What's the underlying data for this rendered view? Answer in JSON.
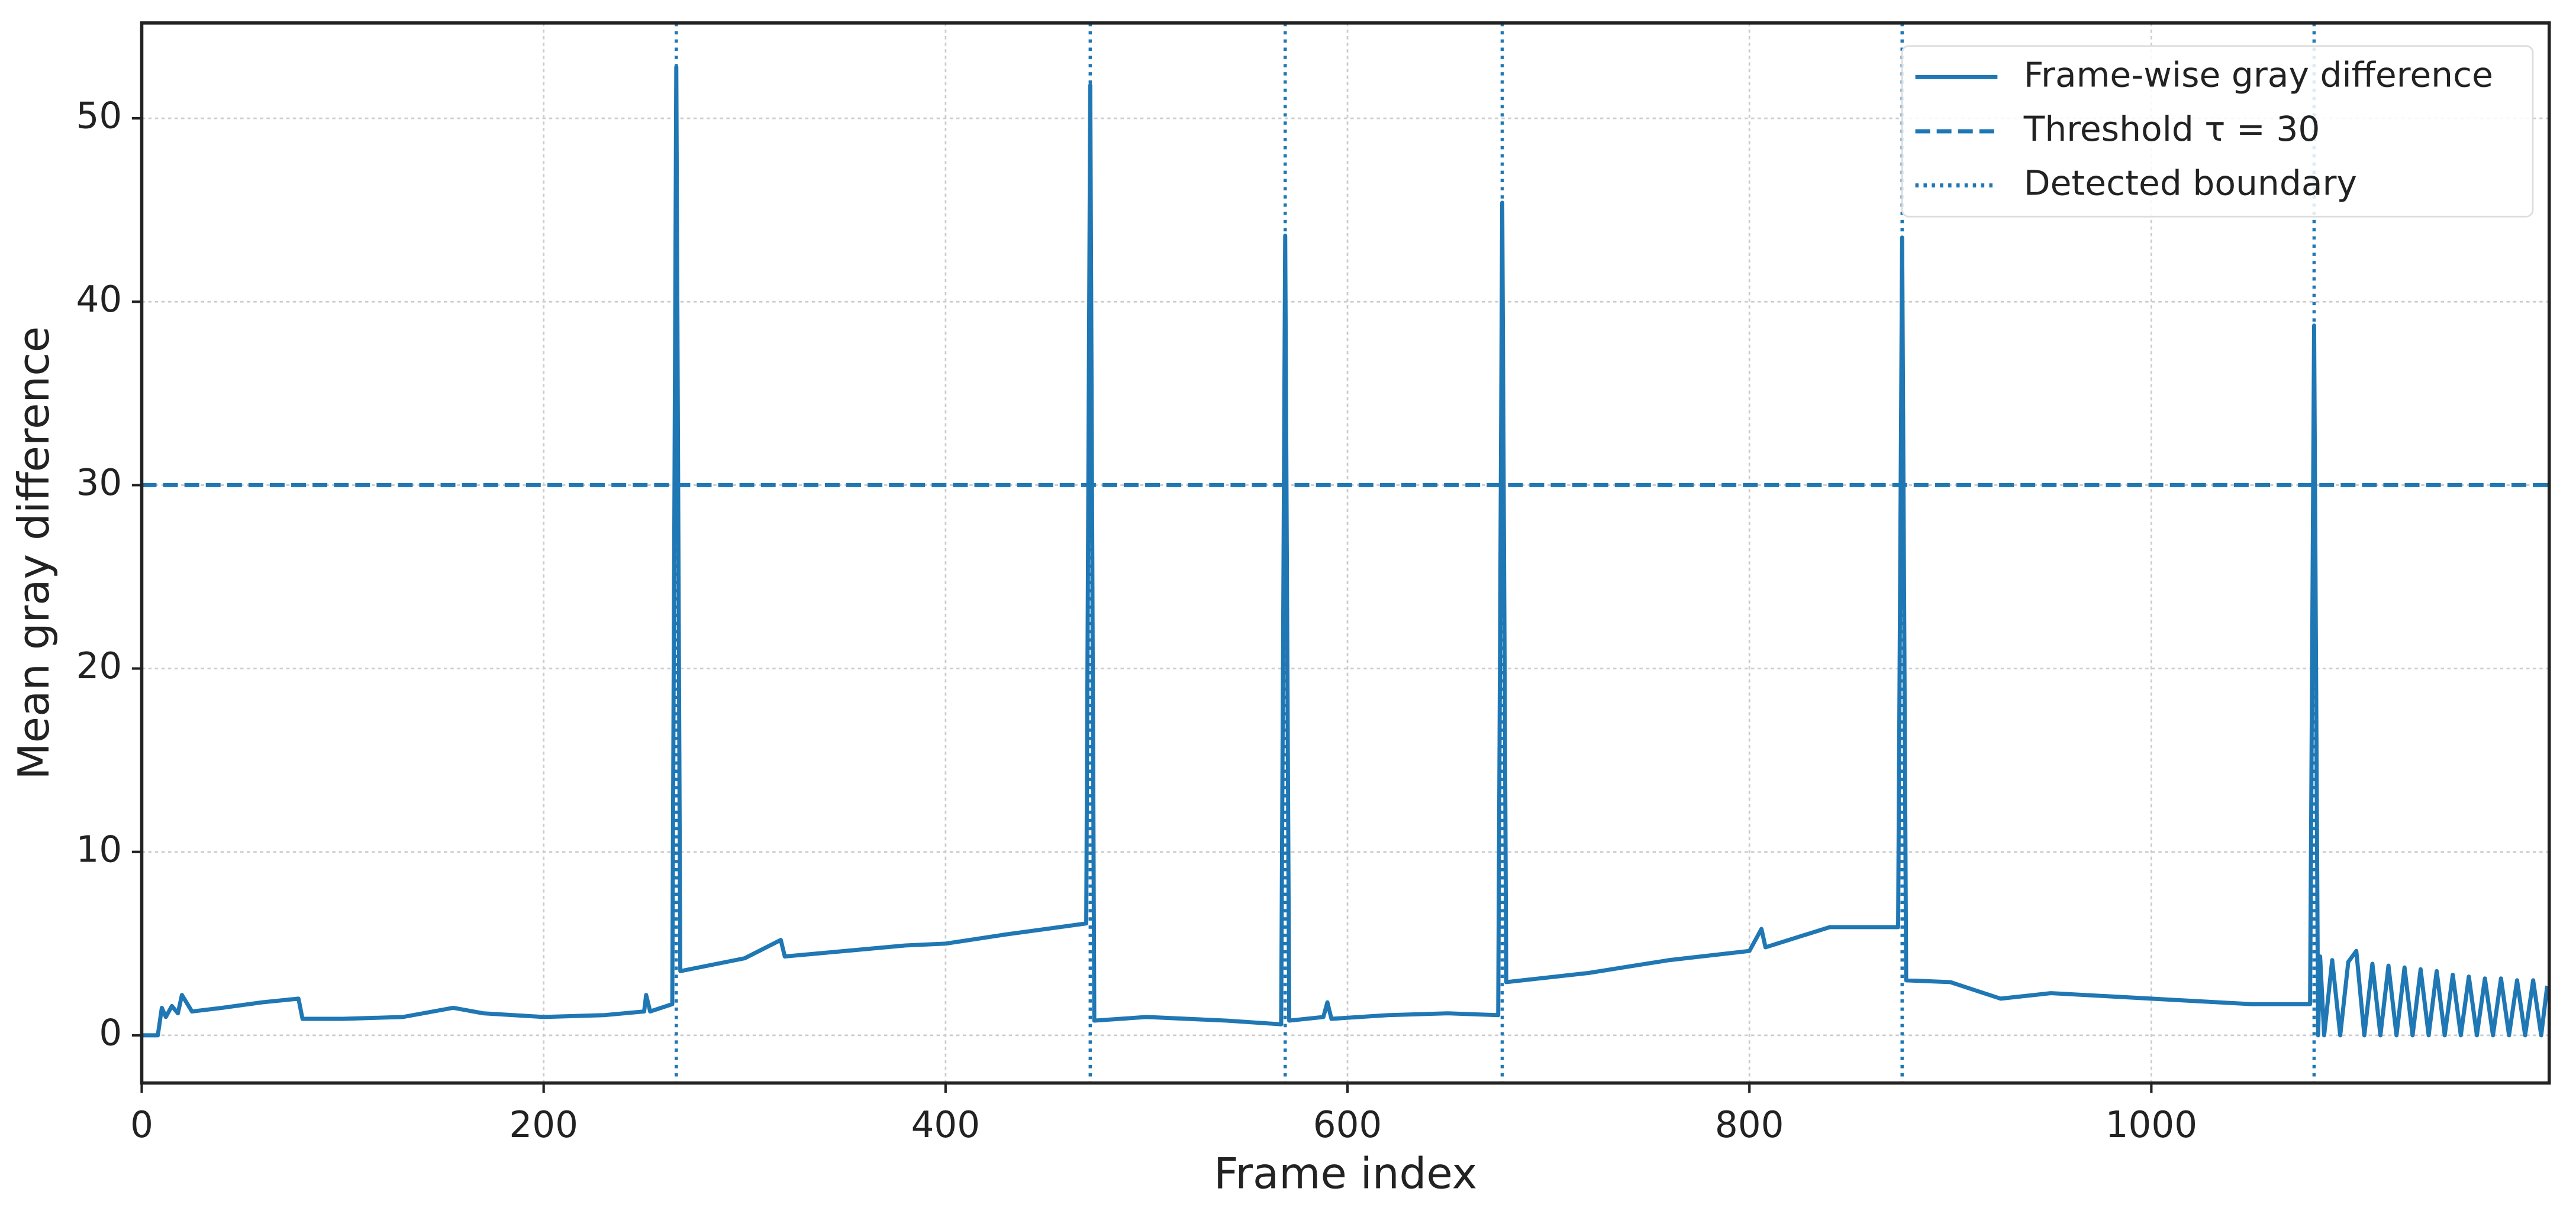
{
  "chart_data": {
    "type": "line",
    "xlabel": "Frame index",
    "ylabel": "Mean gray difference",
    "xlim": [
      0,
      1198
    ],
    "ylim": [
      -2.6,
      55.2
    ],
    "xticks": [
      0,
      200,
      400,
      600,
      800,
      1000
    ],
    "yticks": [
      0,
      10,
      20,
      30,
      40,
      50
    ],
    "grid": true,
    "legend": "upper right",
    "series": [
      {
        "name": "Frame-wise gray difference",
        "color": "#1f77b4",
        "x": [
          0,
          8,
          10,
          12,
          15,
          18,
          20,
          25,
          40,
          60,
          78,
          80,
          100,
          130,
          155,
          170,
          200,
          230,
          250,
          251,
          253,
          264,
          266,
          268,
          300,
          318,
          320,
          350,
          380,
          400,
          430,
          470,
          472,
          474,
          500,
          540,
          567,
          569,
          571,
          588,
          590,
          592,
          620,
          650,
          675,
          677,
          679,
          720,
          760,
          800,
          806,
          808,
          840,
          874,
          876,
          878,
          900,
          925,
          950,
          1000,
          1050,
          1079,
          1081,
          1083,
          1084,
          1086,
          1090,
          1094,
          1098,
          1102,
          1106,
          1110,
          1114,
          1118,
          1122,
          1126,
          1130,
          1134,
          1138,
          1142,
          1146,
          1150,
          1154,
          1158,
          1162,
          1166,
          1170,
          1174,
          1178,
          1182,
          1186,
          1190,
          1194,
          1197
        ],
        "values": [
          0,
          0,
          1.5,
          1.0,
          1.6,
          1.2,
          2.2,
          1.3,
          1.5,
          1.8,
          2.0,
          0.9,
          0.9,
          1.0,
          1.5,
          1.2,
          1.0,
          1.1,
          1.3,
          2.2,
          1.3,
          1.7,
          52.8,
          3.5,
          4.2,
          5.2,
          4.3,
          4.6,
          4.9,
          5.0,
          5.5,
          6.1,
          51.8,
          0.8,
          1.0,
          0.8,
          0.6,
          43.6,
          0.8,
          1.0,
          1.8,
          0.9,
          1.1,
          1.2,
          1.1,
          45.4,
          2.9,
          3.4,
          4.1,
          4.6,
          5.8,
          4.8,
          5.9,
          5.9,
          43.5,
          3.0,
          2.9,
          2.0,
          2.3,
          2.0,
          1.7,
          1.7,
          38.7,
          0,
          4.3,
          0,
          4.1,
          0,
          4.0,
          4.6,
          0,
          3.9,
          0,
          3.8,
          0,
          3.7,
          0,
          3.6,
          0,
          3.5,
          0,
          3.3,
          0,
          3.2,
          0,
          3.1,
          0,
          3.1,
          0,
          3.0,
          0,
          3.0,
          0,
          2.7
        ]
      }
    ],
    "threshold": {
      "name": "Threshold τ = 30",
      "value": 30,
      "color": "#1f77b4"
    },
    "boundaries": {
      "name": "Detected boundary",
      "values": [
        266,
        472,
        569,
        677,
        876,
        1081
      ],
      "color": "#1f77b4"
    }
  }
}
